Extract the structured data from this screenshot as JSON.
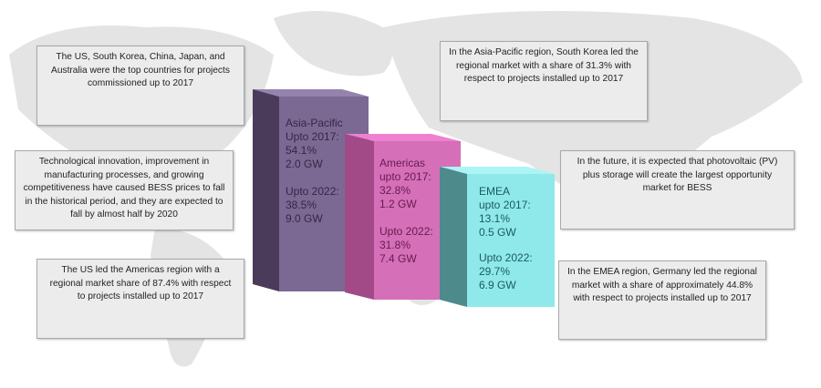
{
  "notes": {
    "top_left": "The US, South Korea, China, Japan, and Australia were the top countries for projects commissioned up to 2017",
    "middle_left": "Technological innovation, improvement in manufacturing processes, and growing competitiveness have caused BESS prices to fall in the historical period, and they are expected to fall by almost half by 2020",
    "bottom_left": "The US led the Americas region with a regional market share of 87.4% with respect to projects installed up to 2017",
    "top_right": "In the Asia-Pacific region, South Korea led the regional market with a share of 31.3% with respect to projects installed up to 2017",
    "middle_right": "In the future, it is expected that photovoltaic (PV) plus storage will create the largest opportunity market for BESS",
    "bottom_right": "In the EMEA region, Germany led the regional market with a share of approximately 44.8% with respect to projects installed up to 2017"
  },
  "bars": [
    {
      "region": "Asia-Pacific",
      "label_2017": "Upto 2017:",
      "share_2017": "54.1%",
      "gw_2017": "2.0 GW",
      "label_2022": "Upto 2022:",
      "share_2022": "38.5%",
      "gw_2022": "9.0 GW",
      "colors": {
        "front": "#7b6993",
        "side": "#4b3b5b",
        "top": "#9583ad",
        "text": "#352646"
      }
    },
    {
      "region": "Americas",
      "label_2017": "upto 2017:",
      "share_2017": "32.8%",
      "gw_2017": "1.2 GW",
      "label_2022": "Upto 2022:",
      "share_2022": "31.8%",
      "gw_2022": "7.4 GW",
      "colors": {
        "front": "#d56fb7",
        "side": "#a24a88",
        "top": "#ef80cf",
        "text": "#651c50"
      }
    },
    {
      "region": "EMEA",
      "label_2017": "upto 2017:",
      "share_2017": "13.1%",
      "gw_2017": "0.5 GW",
      "label_2022": "Upto 2022:",
      "share_2022": "29.7%",
      "gw_2022": "6.9 GW",
      "colors": {
        "front": "#8fe9eb",
        "side": "#4d8a8b",
        "top": "#acf4f5",
        "text": "#1b5b5d"
      }
    }
  ]
}
